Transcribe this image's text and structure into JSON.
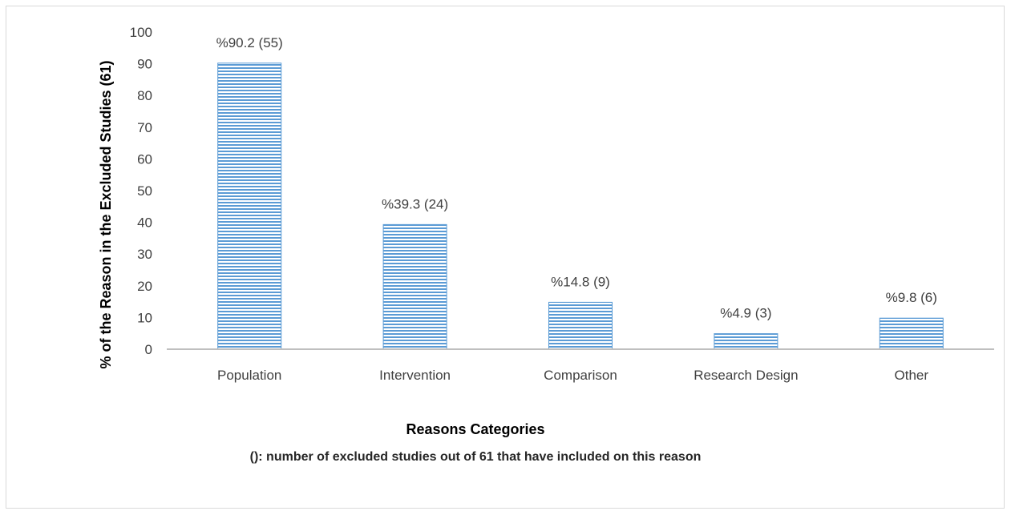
{
  "chart_data": {
    "type": "bar",
    "categories": [
      "Population",
      "Intervention",
      "Comparison",
      "Research Design",
      "Other"
    ],
    "values": [
      90.2,
      39.3,
      14.8,
      4.9,
      9.8
    ],
    "data_labels": [
      "%90.2 (55)",
      "%39.3 (24)",
      "%14.8 (9)",
      "%4.9 (3)",
      "%9.8 (6)"
    ],
    "xlabel": "Reasons Categories",
    "ylabel": "% of the Reason in the Excluded Studies (61)",
    "note": "(): number of excluded studies out of 61 that have included on this reason",
    "ylim": [
      0,
      100
    ],
    "yticks": [
      0,
      10,
      20,
      30,
      40,
      50,
      60,
      70,
      80,
      90,
      100
    ],
    "grid": false,
    "legend": "none",
    "colors": {
      "bar": "#5b9bd5",
      "stripe_light": "#ffffff",
      "axis": "#bfbfbf"
    }
  }
}
